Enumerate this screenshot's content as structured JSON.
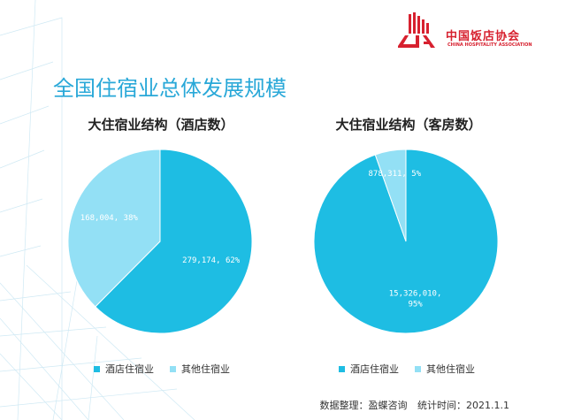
{
  "logo": {
    "name_cn": "中国饭店协会",
    "name_en": "CHINA HOSPITALITY ASSOCIATION"
  },
  "page": {
    "title": "全国住宿业总体发展规模"
  },
  "footer": {
    "source": "数据整理：盈蝶咨询",
    "date": "统计时间：2021.1.1"
  },
  "colors": {
    "primary_slice": "#1ebde3",
    "secondary_slice": "#93e0f5",
    "title_blue": "#29a8d8",
    "logo_red": "#d7212f"
  },
  "chart_data": [
    {
      "type": "pie",
      "title": "大住宿业结构（酒店数）",
      "series": [
        {
          "name": "酒店住宿业",
          "value": 279174,
          "label": "279,174, 62%",
          "color": "#1ebde3"
        },
        {
          "name": "其他住宿业",
          "value": 168004,
          "label": "168,004, 38%",
          "color": "#93e0f5"
        }
      ],
      "legend": [
        "酒店住宿业",
        "其他住宿业"
      ],
      "legend_position": "bottom"
    },
    {
      "type": "pie",
      "title": "大住宿业结构（客房数）",
      "series": [
        {
          "name": "酒店住宿业",
          "value": 15326010,
          "label": "15,326,010, 95%",
          "color": "#1ebde3"
        },
        {
          "name": "其他住宿业",
          "value": 878311,
          "label": "878,311, 5%",
          "color": "#93e0f5"
        }
      ],
      "legend": [
        "酒店住宿业",
        "其他住宿业"
      ],
      "legend_position": "bottom"
    }
  ]
}
